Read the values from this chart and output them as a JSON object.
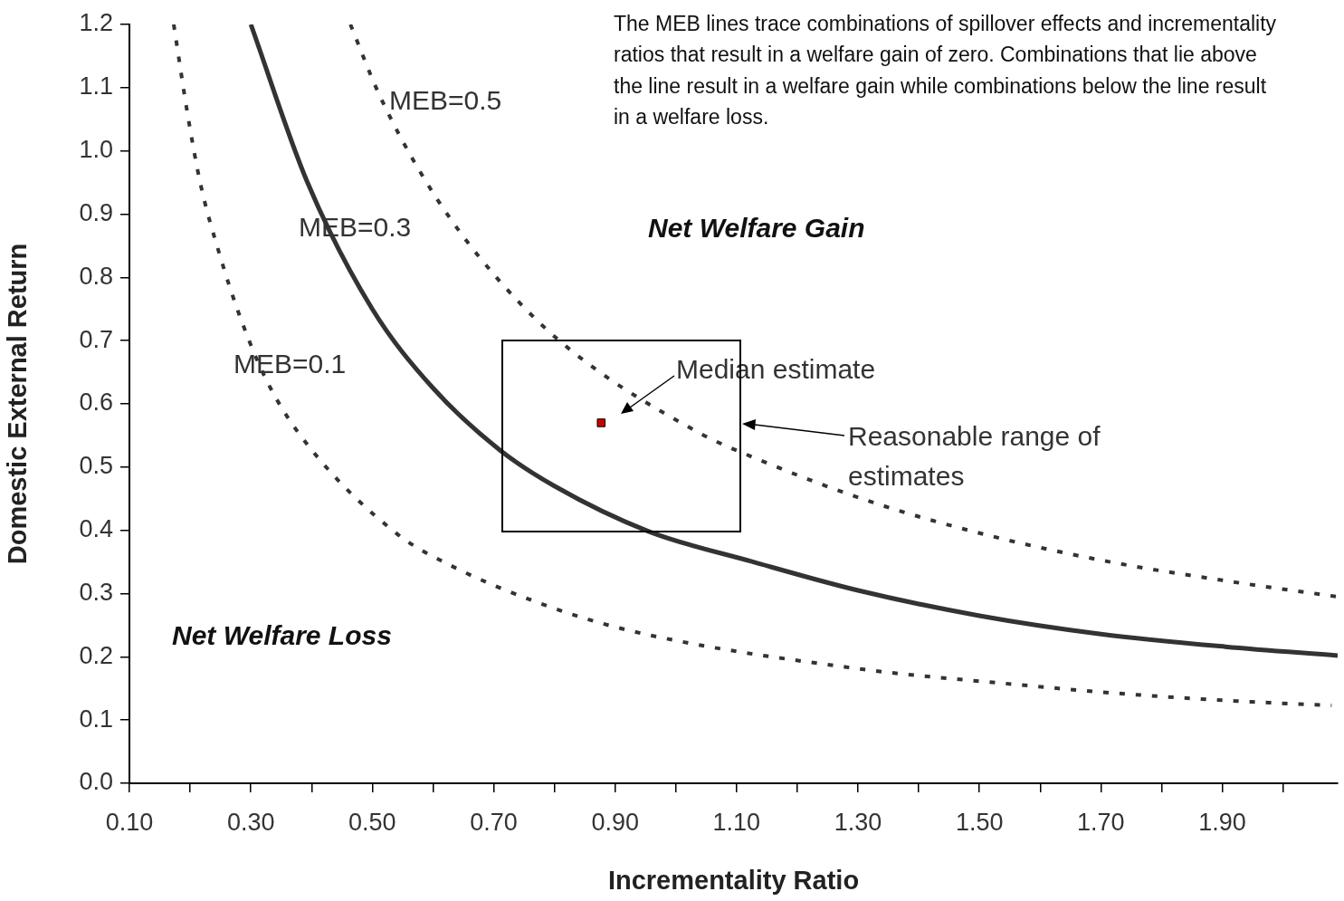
{
  "chart_data": {
    "type": "line",
    "xlabel": "Incrementality Ratio",
    "ylabel": "Domestic External Return",
    "xlim": [
      0.1,
      2.09
    ],
    "xticks": [
      {
        "value": 0.1,
        "label": "0.10"
      },
      {
        "value": 0.2,
        "label": null
      },
      {
        "value": 0.3,
        "label": "0.30"
      },
      {
        "value": 0.4,
        "label": null
      },
      {
        "value": 0.5,
        "label": "0.50"
      },
      {
        "value": 0.6,
        "label": null
      },
      {
        "value": 0.7,
        "label": "0.70"
      },
      {
        "value": 0.8,
        "label": null
      },
      {
        "value": 0.9,
        "label": "0.90"
      },
      {
        "value": 1.0,
        "label": null
      },
      {
        "value": 1.1,
        "label": "1.10"
      },
      {
        "value": 1.2,
        "label": null
      },
      {
        "value": 1.3,
        "label": "1.30"
      },
      {
        "value": 1.4,
        "label": null
      },
      {
        "value": 1.5,
        "label": "1.50"
      },
      {
        "value": 1.6,
        "label": null
      },
      {
        "value": 1.7,
        "label": "1.70"
      },
      {
        "value": 1.8,
        "label": null
      },
      {
        "value": 1.9,
        "label": "1.90"
      },
      {
        "value": 2.0,
        "label": null
      }
    ],
    "ylim": [
      0,
      1.2
    ],
    "yticks": [
      {
        "value": 0,
        "label": "0.0"
      },
      0.1,
      0.2,
      0.3,
      0.4,
      0.5,
      0.6,
      0.7,
      0.8,
      0.9,
      {
        "value": 1,
        "label": "1.0"
      },
      1.1,
      1.2
    ],
    "grid": false,
    "legend": false,
    "series": [
      {
        "name": "MEB=0.1",
        "line_style": "dashed",
        "color": "#333333",
        "x": [
          0.173,
          0.196,
          0.217,
          0.248,
          0.284,
          0.328,
          0.392,
          0.54,
          0.63,
          0.778,
          0.926,
          1.31,
          1.54,
          1.73,
          1.925,
          2.08
        ],
        "values": [
          1.2,
          1.057,
          0.948,
          0.838,
          0.733,
          0.633,
          0.537,
          0.395,
          0.344,
          0.284,
          0.241,
          0.18,
          0.158,
          0.142,
          0.13,
          0.123
        ]
      },
      {
        "name": "MEB=0.3",
        "line_style": "solid",
        "color": "#333333",
        "x": [
          0.3,
          0.392,
          0.5,
          0.6,
          0.71,
          0.8,
          0.956,
          1.124,
          1.3,
          1.5,
          1.7,
          1.905,
          2.09
        ],
        "values": [
          1.2,
          0.953,
          0.75,
          0.625,
          0.527,
          0.47,
          0.398,
          0.351,
          0.305,
          0.265,
          0.236,
          0.216,
          0.202
        ]
      },
      {
        "name": "MEB=0.5",
        "line_style": "dashed",
        "color": "#333333",
        "x": [
          0.464,
          0.511,
          0.585,
          0.674,
          0.808,
          1.035,
          1.144,
          1.325,
          1.515,
          1.71,
          1.9,
          2.09
        ],
        "values": [
          1.2,
          1.09,
          0.957,
          0.835,
          0.7,
          0.556,
          0.509,
          0.444,
          0.392,
          0.351,
          0.321,
          0.295
        ]
      },
      {
        "type": "scatter",
        "marker": "square",
        "color": "#cc0000",
        "x": [
          0.877
        ],
        "values": [
          0.57
        ]
      }
    ],
    "annotations": [
      "The MEB lines trace combinations of spillover effects and incrementality ratios that result in a welfare gain of zero. Combinations that lie above the line result in a welfare gain while combinations below the line result in a welfare loss.",
      "Net Welfare Gain",
      "Net Welfare Loss",
      "Median estimate",
      "Reasonable range of estimates"
    ]
  }
}
